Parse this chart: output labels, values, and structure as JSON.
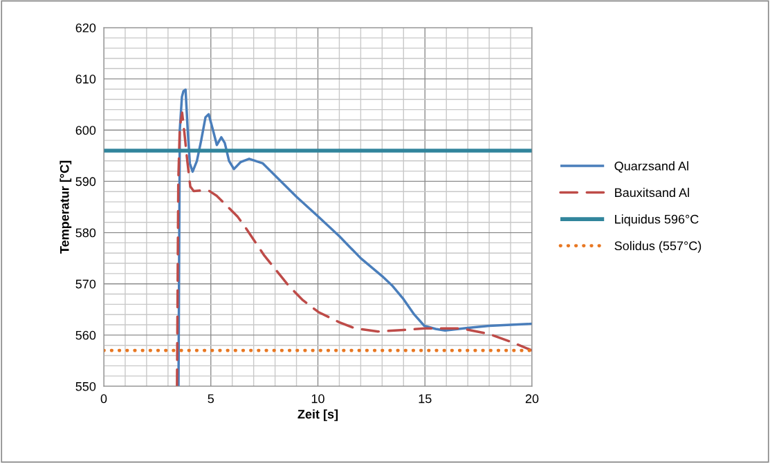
{
  "chart_data": {
    "type": "line",
    "xlabel": "Zeit [s]",
    "ylabel": "Temperatur [°C]",
    "xlim": [
      0,
      20
    ],
    "xticks": [
      0,
      5,
      10,
      15,
      20
    ],
    "ylim": [
      550,
      620
    ],
    "yticks": [
      550,
      560,
      570,
      580,
      590,
      600,
      610,
      620
    ],
    "grid": true,
    "legend": "right",
    "series": [
      {
        "name": "Quarzsand Al",
        "color": "#4a7ebb",
        "line_style": "solid",
        "x": [
          3.49,
          3.55,
          3.65,
          3.72,
          3.82,
          3.92,
          4.02,
          4.15,
          4.35,
          4.55,
          4.75,
          4.9,
          5.1,
          5.28,
          5.49,
          5.65,
          5.85,
          6.08,
          6.4,
          6.79,
          7.43,
          8.08,
          9,
          10.02,
          11,
          12,
          13,
          13.46,
          14,
          14.5,
          14.97,
          15.5,
          15.94,
          17,
          18,
          19,
          20
        ],
        "values": [
          550,
          600,
          606.5,
          607.6,
          607.9,
          600,
          593.5,
          591.9,
          594,
          598,
          602.5,
          603.1,
          600,
          597.1,
          598.6,
          597.5,
          594,
          592.4,
          593.8,
          594.4,
          593.5,
          590.8,
          587,
          583.1,
          579.3,
          575,
          571.5,
          569.7,
          567,
          564,
          561.8,
          561.2,
          560.9,
          561.4,
          561.8,
          562,
          562.2
        ]
      },
      {
        "name": "Bauxitsand Al",
        "color": "#be4b48",
        "line_style": "dashed",
        "x": [
          3.42,
          3.48,
          3.55,
          3.66,
          3.77,
          3.9,
          4.04,
          4.2,
          4.5,
          4.9,
          5.27,
          5.8,
          6.25,
          6.57,
          7.5,
          8.62,
          9.3,
          10.02,
          11,
          11.74,
          12.81,
          14,
          14.97,
          16.7,
          18,
          19.06,
          20
        ],
        "values": [
          550,
          590,
          600.5,
          603.4,
          599.3,
          594,
          589,
          588.1,
          588.2,
          588.2,
          587.2,
          585,
          583.1,
          581.3,
          575.5,
          569.7,
          566.8,
          564.5,
          562.5,
          561.3,
          560.7,
          561,
          561.3,
          561.3,
          560.2,
          558.6,
          557
        ]
      },
      {
        "name": "Liquidus 596°C",
        "color": "#31859c",
        "line_style": "solid",
        "x": [
          0,
          20
        ],
        "values": [
          596,
          596
        ]
      },
      {
        "name": "Solidus (557°C)",
        "color": "#e87722",
        "line_style": "dotted",
        "x": [
          0,
          20
        ],
        "values": [
          557,
          557
        ]
      }
    ]
  }
}
